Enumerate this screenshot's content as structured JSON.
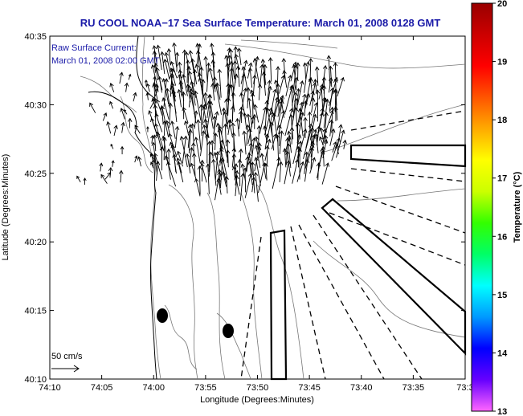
{
  "title": "RU COOL  NOAA−17  Sea Surface Temperature:  March 01, 2008 0128 GMT",
  "annotation": {
    "line1": "Raw Surface Current:",
    "line2": "March 01, 2008 02:00 GMT"
  },
  "scale_label": "50 cm/s",
  "chart_data": {
    "type": "map",
    "xlabel": "Longitude (Degrees:Minutes)",
    "ylabel": "Latitude (Degrees:Minutes)",
    "x_ticks": [
      "74:10",
      "74:05",
      "74:00",
      "73:55",
      "73:50",
      "73:45",
      "73:40",
      "73:35",
      "73:3"
    ],
    "y_ticks": [
      "40:35",
      "40:30",
      "40:25",
      "40:20",
      "40:15",
      "40:10"
    ],
    "xlim": [
      "74:10",
      "73:30"
    ],
    "ylim": [
      "40:10",
      "40:35"
    ],
    "colorbar": {
      "label": "Temperature (°C)",
      "ticks": [
        "20",
        "19",
        "18",
        "17",
        "16",
        "15",
        "14",
        "13"
      ],
      "range": [
        13,
        20
      ],
      "colors": [
        "#ff66ff",
        "#6600ff",
        "#0000ff",
        "#0099ff",
        "#00ffff",
        "#00ff66",
        "#33ff00",
        "#ccff00",
        "#ffff00",
        "#ffaa00",
        "#ff5500",
        "#ff0000",
        "#cc0000",
        "#990000"
      ]
    },
    "features": {
      "dark_dots": 2,
      "current_vector_field": "northward flow across Raritan Bay approaches",
      "shipping_lanes": 3
    }
  }
}
